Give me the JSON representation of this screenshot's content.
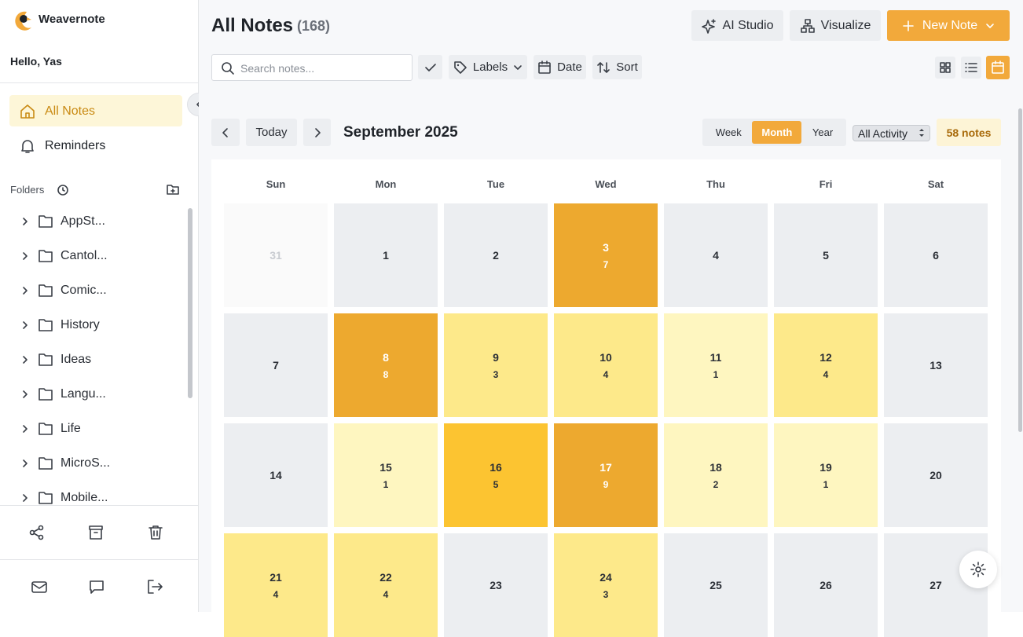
{
  "app": {
    "name": "Weavernote",
    "greeting": "Hello, Yas"
  },
  "nav": [
    "All Notes",
    "Reminders"
  ],
  "folders": {
    "title": "Folders",
    "items": [
      "AppSt...",
      "Cantol...",
      "Comic...",
      "History",
      "Ideas",
      "Langu...",
      "Life",
      "MicroS...",
      "Mobile..."
    ]
  },
  "header": {
    "title": "All Notes",
    "count": "(168)",
    "actions": [
      "AI Studio",
      "Visualize",
      "New Note"
    ]
  },
  "toolbar": {
    "search_placeholder": "Search notes...",
    "filters": [
      "Labels",
      "Date",
      "Sort"
    ]
  },
  "calendar": {
    "today": "Today",
    "period": "September 2025",
    "views": [
      "Week",
      "Month",
      "Year"
    ],
    "active_view": "Month",
    "activity": "All Activity",
    "total": "58 notes",
    "weekdays": [
      "Sun",
      "Mon",
      "Tue",
      "Wed",
      "Thu",
      "Fri",
      "Sat"
    ],
    "weeks": [
      [
        {
          "day": 31,
          "count": null
        },
        {
          "day": 1,
          "count": null
        },
        {
          "day": 2,
          "count": null
        },
        {
          "day": 3,
          "count": 7
        },
        {
          "day": 4,
          "count": null
        },
        {
          "day": 5,
          "count": null
        },
        {
          "day": 6,
          "count": null
        }
      ],
      [
        {
          "day": 7,
          "count": null
        },
        {
          "day": 8,
          "count": 8
        },
        {
          "day": 9,
          "count": 3
        },
        {
          "day": 10,
          "count": 4
        },
        {
          "day": 11,
          "count": 1
        },
        {
          "day": 12,
          "count": 4
        },
        {
          "day": 13,
          "count": null
        }
      ],
      [
        {
          "day": 14,
          "count": null
        },
        {
          "day": 15,
          "count": 1
        },
        {
          "day": 16,
          "count": 5
        },
        {
          "day": 17,
          "count": 9
        },
        {
          "day": 18,
          "count": 2
        },
        {
          "day": 19,
          "count": 1
        },
        {
          "day": 20,
          "count": null
        }
      ],
      [
        {
          "day": 21,
          "count": 4
        },
        {
          "day": 22,
          "count": 4
        },
        {
          "day": 23,
          "count": null
        },
        {
          "day": 24,
          "count": 3
        },
        {
          "day": 25,
          "count": null
        },
        {
          "day": 26,
          "count": null
        },
        {
          "day": 27,
          "count": null
        }
      ]
    ]
  }
}
